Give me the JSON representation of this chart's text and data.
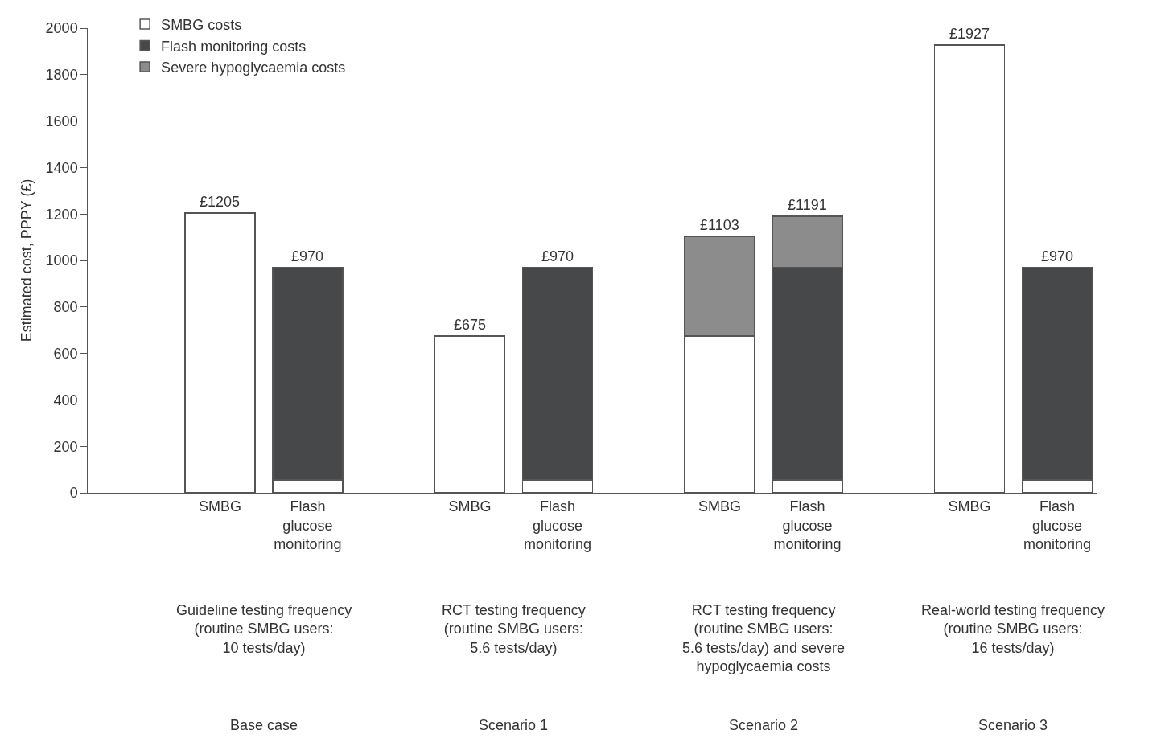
{
  "chart_data": {
    "type": "bar",
    "stacked": true,
    "ylabel": "Estimated cost, PPPY (£)",
    "categories": [
      "SMBG",
      "Flash\nglucose\nmonitoring",
      "SMBG",
      "Flash\nglucose\nmonitoring",
      "SMBG",
      "Flash\nglucose\nmonitoring",
      "SMBG",
      "Flash\nglucose\nmonitoring"
    ],
    "series": [
      {
        "name": "SMBG costs",
        "color": "#ffffff",
        "values": [
          1205,
          55,
          675,
          55,
          675,
          55,
          1927,
          55
        ]
      },
      {
        "name": "Flash monitoring costs",
        "color": "#474849",
        "values": [
          null,
          915,
          null,
          915,
          null,
          915,
          null,
          915
        ]
      },
      {
        "name": "Severe hypoglycaemia costs",
        "color": "#8c8c8c",
        "values": [
          null,
          null,
          null,
          null,
          428,
          221,
          null,
          null
        ]
      }
    ],
    "totals": [
      "£1205",
      "£970",
      "£675",
      "£970",
      "£1103",
      "£1191",
      "£1927",
      "£970"
    ],
    "ylim": [
      0,
      2000
    ],
    "yticks": [
      0,
      200,
      400,
      600,
      800,
      1000,
      1200,
      1400,
      1600,
      1800,
      2000
    ],
    "grid": false,
    "legend": "top left",
    "annotations": [
      "Guideline testing frequency\n(routine SMBG users:\n10 tests/day)",
      "RCT testing frequency\n(routine SMBG users:\n5.6 tests/day)",
      "RCT testing frequency\n(routine SMBG users:\n5.6 tests/day) and severe\nhypoglycaemia costs",
      "Real-world testing frequency\n(routine SMBG users:\n16 tests/day)",
      "Base case",
      "Scenario 1",
      "Scenario 2",
      "Scenario 3"
    ]
  }
}
